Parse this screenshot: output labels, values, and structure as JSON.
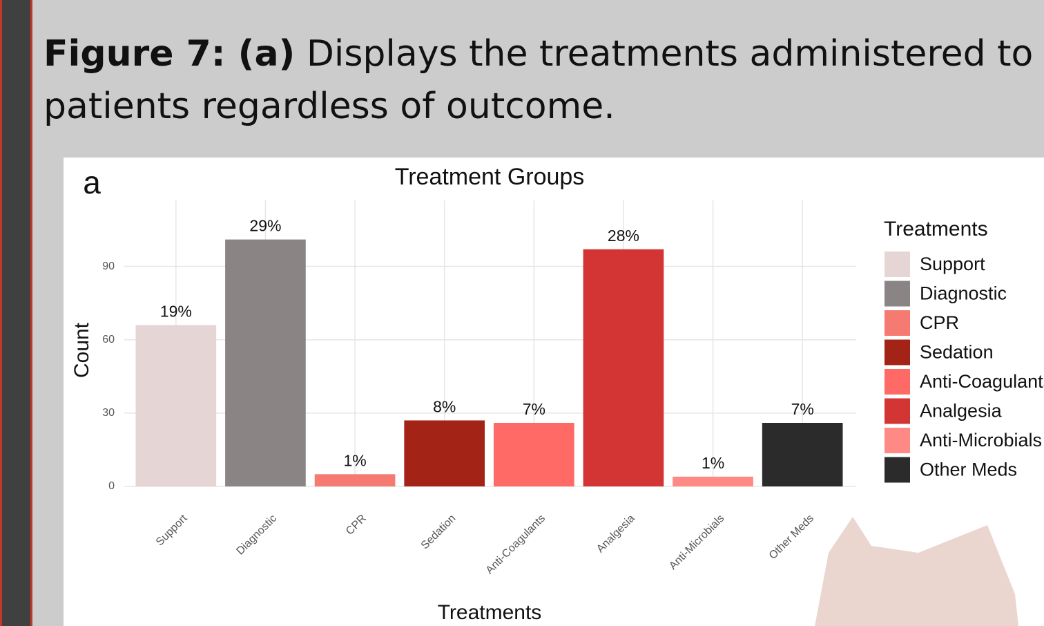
{
  "header": {
    "figure_label": "Figure 7: (a)",
    "caption": "Displays the treatments administered to patients regardless of outcome."
  },
  "panel_label": "a",
  "chart_data": {
    "type": "bar",
    "title": "Treatment Groups",
    "xlabel": "Treatments",
    "ylabel": "Count",
    "legend_title": "Treatments",
    "categories": [
      "Support",
      "Diagnostic",
      "CPR",
      "Sedation",
      "Anti-Coagulants",
      "Analgesia",
      "Anti-Microbials",
      "Other Meds"
    ],
    "values": [
      66,
      101,
      5,
      27,
      26,
      97,
      4,
      26
    ],
    "value_labels": [
      "19%",
      "29%",
      "1%",
      "8%",
      "7%",
      "28%",
      "1%",
      "7%"
    ],
    "colors": [
      "#e6d5d5",
      "#8a8484",
      "#f47a72",
      "#a32317",
      "#ff6a66",
      "#d33535",
      "#ff8a85",
      "#2b2b2b"
    ],
    "ylim": [
      0,
      117
    ],
    "yticks": [
      0,
      30,
      60,
      90
    ],
    "grid": true,
    "legend": "right"
  }
}
